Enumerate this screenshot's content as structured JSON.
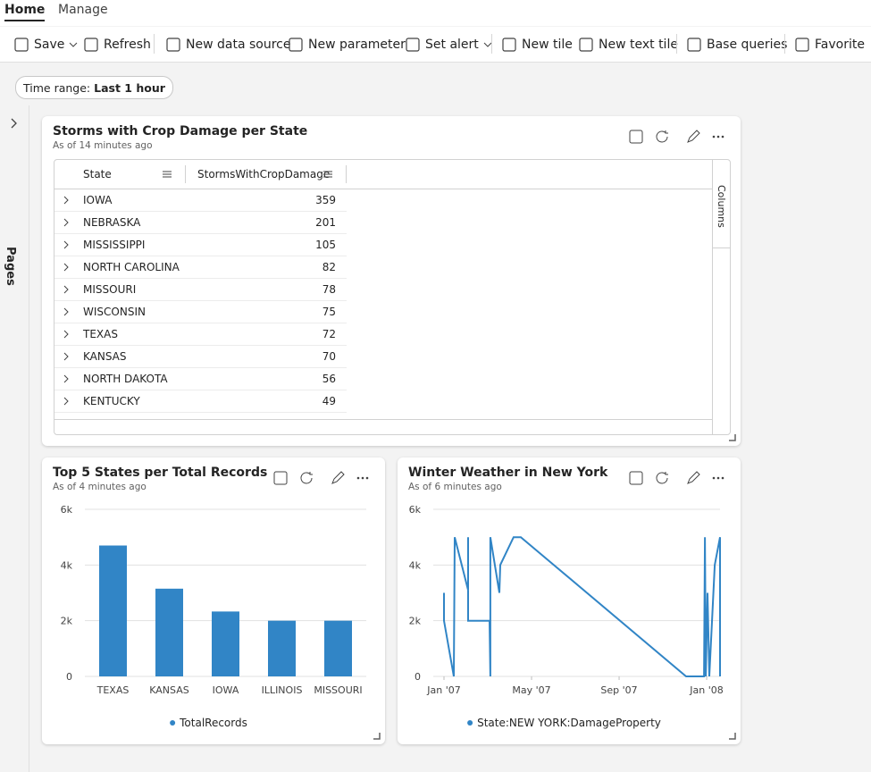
{
  "tabs": [
    "Home",
    "Manage"
  ],
  "toolbar": [
    "Save",
    "Refresh",
    "New data source",
    "New parameter",
    "Set alert",
    "New tile",
    "New text tile",
    "Base queries",
    "Favorite"
  ],
  "time_range": {
    "label": "Time range:",
    "value": "Last 1 hour"
  },
  "pages_label": "Pages",
  "table_tile": {
    "title": "Storms with Crop Damage per State",
    "subtitle": "As of 14 minutes ago",
    "columns": [
      "State",
      "StormsWithCropDamage"
    ],
    "rows": [
      [
        "IOWA",
        359
      ],
      [
        "NEBRASKA",
        201
      ],
      [
        "MISSISSIPPI",
        105
      ],
      [
        "NORTH CAROLINA",
        82
      ],
      [
        "MISSOURI",
        78
      ],
      [
        "WISCONSIN",
        75
      ],
      [
        "TEXAS",
        72
      ],
      [
        "KANSAS",
        70
      ],
      [
        "NORTH DAKOTA",
        56
      ],
      [
        "KENTUCKY",
        49
      ]
    ],
    "side_label": "Columns"
  },
  "bar_tile": {
    "title": "Top 5 States per Total Records",
    "subtitle": "As of 4 minutes ago",
    "chart": {
      "type": "bar",
      "categories": [
        "TEXAS",
        "KANSAS",
        "IOWA",
        "ILLINOIS",
        "MISSOURI"
      ],
      "series": [
        {
          "name": "TotalRecords",
          "color": "#3185c6",
          "values": [
            4700,
            3150,
            2330,
            2000,
            2000
          ]
        }
      ],
      "ylim": [
        0,
        6000
      ],
      "yticks": [
        0,
        {
          "value": 2000,
          "label": "2k"
        },
        {
          "value": 4000,
          "label": "4k"
        },
        {
          "value": 6000,
          "label": "6k"
        }
      ],
      "grid": true
    }
  },
  "line_tile": {
    "title": "Winter Weather in New York",
    "subtitle": "As of 6 minutes ago",
    "chart": {
      "type": "line",
      "x": [
        0,
        0,
        0.45,
        0.49,
        1.1,
        1.1,
        1.1,
        2.08,
        2.12,
        2.12,
        2.53,
        2.57,
        3.18,
        3.51,
        11.06,
        11.88,
        11.92,
        11.96,
        12.04,
        12.12,
        12.37,
        12.61,
        12.61
      ],
      "series": [
        {
          "name": "State:NEW YORK:DamageProperty",
          "color": "#3185c6",
          "values": [
            3000,
            2000,
            0,
            5000,
            3100,
            5000,
            2000,
            2000,
            0,
            5000,
            3000,
            4000,
            5000,
            5000,
            0,
            0,
            5000,
            0,
            3000,
            0,
            4000,
            5000,
            0
          ]
        }
      ],
      "xlim": [
        0,
        12.61
      ],
      "xticks": [
        {
          "value": 0,
          "label": "Jan '07"
        },
        {
          "value": 4,
          "label": "May '07"
        },
        {
          "value": 8,
          "label": "Sep '07"
        },
        {
          "value": 12,
          "label": "Jan '08"
        }
      ],
      "ylim": [
        0,
        6000
      ],
      "yticks": [
        0,
        {
          "value": 2000,
          "label": "2k"
        },
        {
          "value": 4000,
          "label": "4k"
        },
        {
          "value": 6000,
          "label": "6k"
        }
      ],
      "grid": true
    }
  }
}
